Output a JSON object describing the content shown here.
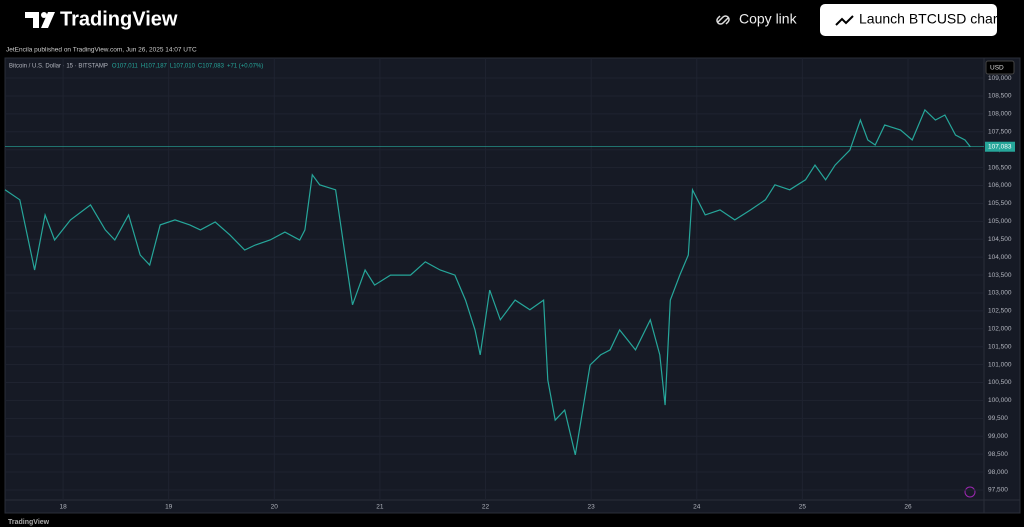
{
  "header": {
    "logo": "TradingView",
    "copy_link": "Copy link",
    "launch": "Launch BTCUSD chart"
  },
  "published": "JetEncila published on TradingView.com, Jun 26, 2025 14:07 UTC",
  "footer": "TradingView",
  "chart_data": {
    "type": "line",
    "title": "Bitcoin / U.S. Dollar · 15 · BITSTAMP",
    "legend_values": [
      "O107,011",
      "H107,187",
      "L107,010",
      "C107,083",
      "+71 (+0.07%)"
    ],
    "currency": "USD",
    "color": "#26a69a",
    "grid": true,
    "current_price": {
      "value": 107083,
      "label": "107,083"
    },
    "x": [
      17.45,
      17.59,
      17.73,
      17.83,
      17.92,
      18.07,
      18.26,
      18.4,
      18.49,
      18.62,
      18.73,
      18.82,
      18.92,
      19.06,
      19.2,
      19.3,
      19.44,
      19.58,
      19.72,
      19.82,
      19.96,
      20.1,
      20.24,
      20.29,
      20.36,
      20.43,
      20.58,
      20.67,
      20.74,
      20.86,
      20.95,
      21.1,
      21.29,
      21.43,
      21.57,
      21.71,
      21.81,
      21.9,
      21.95,
      22.04,
      22.14,
      22.28,
      22.42,
      22.55,
      22.59,
      22.66,
      22.75,
      22.85,
      22.92,
      22.99,
      23.09,
      23.18,
      23.27,
      23.42,
      23.56,
      23.65,
      23.7,
      23.75,
      23.84,
      23.92,
      23.96,
      24.08,
      24.22,
      24.36,
      24.51,
      24.65,
      24.74,
      24.88,
      25.03,
      25.12,
      25.22,
      25.31,
      25.45,
      25.55,
      25.62,
      25.69,
      25.78,
      25.93,
      26.04,
      26.16,
      26.26,
      26.35,
      26.45,
      26.54,
      26.59
    ],
    "values": [
      105880,
      105600,
      103640,
      105180,
      104480,
      105040,
      105460,
      104760,
      104480,
      105180,
      104060,
      103780,
      104900,
      105040,
      104900,
      104760,
      104980,
      104620,
      104200,
      104340,
      104480,
      104700,
      104480,
      104760,
      106300,
      106020,
      105880,
      104060,
      102670,
      103640,
      103220,
      103500,
      103500,
      103870,
      103640,
      103500,
      102800,
      101970,
      101270,
      103080,
      102250,
      102800,
      102530,
      102800,
      100570,
      99450,
      99730,
      98480,
      99730,
      100990,
      101270,
      101410,
      101970,
      101410,
      102250,
      101270,
      99870,
      102800,
      103500,
      104060,
      105880,
      105180,
      105320,
      105040,
      105320,
      105600,
      106020,
      105880,
      106160,
      106570,
      106160,
      106570,
      106990,
      107830,
      107270,
      107130,
      107690,
      107550,
      107270,
      108110,
      107830,
      107970,
      107410,
      107270,
      107083
    ],
    "xlim": [
      17.45,
      26.72
    ],
    "xticks": [
      18,
      19,
      20,
      21,
      22,
      23,
      24,
      25,
      26
    ],
    "ylim": [
      97220,
      109560
    ],
    "yticks": [
      {
        "value": 97500,
        "label": "97,500"
      },
      {
        "value": 98000,
        "label": "98,000"
      },
      {
        "value": 98500,
        "label": "98,500"
      },
      {
        "value": 99000,
        "label": "99,000"
      },
      {
        "value": 99500,
        "label": "99,500"
      },
      {
        "value": 100000,
        "label": "100,000"
      },
      {
        "value": 100500,
        "label": "100,500"
      },
      {
        "value": 101000,
        "label": "101,000"
      },
      {
        "value": 101500,
        "label": "101,500"
      },
      {
        "value": 102000,
        "label": "102,000"
      },
      {
        "value": 102500,
        "label": "102,500"
      },
      {
        "value": 103000,
        "label": "103,000"
      },
      {
        "value": 103500,
        "label": "103,500"
      },
      {
        "value": 104000,
        "label": "104,000"
      },
      {
        "value": 104500,
        "label": "104,500"
      },
      {
        "value": 105000,
        "label": "105,000"
      },
      {
        "value": 105500,
        "label": "105,500"
      },
      {
        "value": 106000,
        "label": "106,000"
      },
      {
        "value": 106500,
        "label": "106,500"
      },
      {
        "value": 107000,
        "label": "107,000"
      },
      {
        "value": 107500,
        "label": "107,500"
      },
      {
        "value": 108000,
        "label": "108,000"
      },
      {
        "value": 108500,
        "label": "108,500"
      },
      {
        "value": 109000,
        "label": "109,000"
      }
    ]
  }
}
